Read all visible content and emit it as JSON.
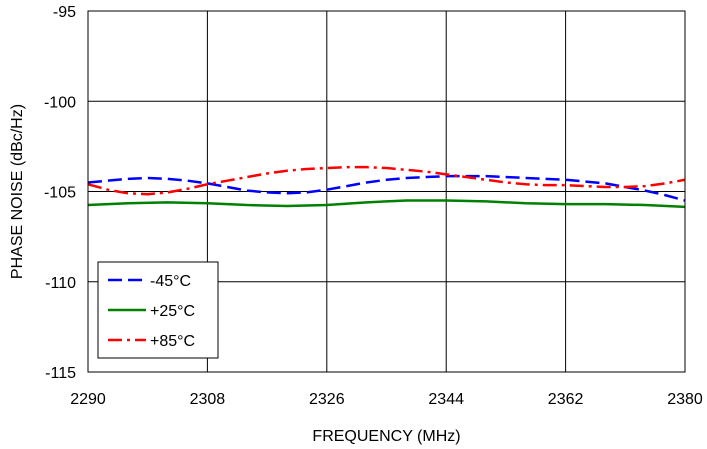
{
  "chart_data": {
    "type": "line",
    "title": "",
    "xlabel": "FREQUENCY (MHz)",
    "ylabel": "PHASE NOISE  (dBc/Hz)",
    "xlim": [
      2290,
      2380
    ],
    "ylim": [
      -115,
      -95
    ],
    "x_ticks": [
      2290,
      2308,
      2326,
      2344,
      2362,
      2380
    ],
    "y_ticks": [
      -95,
      -100,
      -105,
      -110,
      -115
    ],
    "x_tick_labels": [
      "2290",
      "2308",
      "2326",
      "2344",
      "2362",
      "2380"
    ],
    "y_tick_labels": [
      "-95",
      "-100",
      "-105",
      "-110",
      "-115"
    ],
    "grid": true,
    "legend_position": "bottom-left",
    "series": [
      {
        "name": "-45°C",
        "color": "#0000ff",
        "dash": "dash",
        "x": [
          2290,
          2293,
          2296,
          2299,
          2302,
          2305,
          2308,
          2311,
          2314,
          2317,
          2320,
          2323,
          2326,
          2329,
          2332,
          2335,
          2338,
          2341,
          2344,
          2347,
          2350,
          2353,
          2356,
          2359,
          2362,
          2365,
          2368,
          2371,
          2374,
          2377,
          2380
        ],
        "y": [
          -104.5,
          -104.4,
          -104.3,
          -104.25,
          -104.3,
          -104.4,
          -104.55,
          -104.75,
          -104.95,
          -105.05,
          -105.1,
          -105.05,
          -104.9,
          -104.7,
          -104.5,
          -104.35,
          -104.25,
          -104.2,
          -104.15,
          -104.15,
          -104.15,
          -104.2,
          -104.25,
          -104.3,
          -104.35,
          -104.45,
          -104.55,
          -104.75,
          -104.95,
          -105.2,
          -105.5
        ]
      },
      {
        "name": "+25°C",
        "color": "#008000",
        "dash": "solid",
        "x": [
          2290,
          2296,
          2302,
          2308,
          2314,
          2320,
          2326,
          2332,
          2338,
          2344,
          2350,
          2356,
          2362,
          2368,
          2374,
          2380
        ],
        "y": [
          -105.75,
          -105.65,
          -105.6,
          -105.65,
          -105.75,
          -105.8,
          -105.75,
          -105.6,
          -105.5,
          -105.5,
          -105.55,
          -105.65,
          -105.7,
          -105.7,
          -105.75,
          -105.85
        ]
      },
      {
        "name": "+85°C",
        "color": "#ff0000",
        "dash": "dashdot",
        "x": [
          2290,
          2293,
          2296,
          2299,
          2302,
          2305,
          2308,
          2311,
          2314,
          2317,
          2320,
          2323,
          2326,
          2329,
          2332,
          2335,
          2338,
          2341,
          2344,
          2347,
          2350,
          2353,
          2356,
          2359,
          2362,
          2365,
          2368,
          2371,
          2374,
          2377,
          2380
        ],
        "y": [
          -104.6,
          -104.9,
          -105.1,
          -105.15,
          -105.05,
          -104.85,
          -104.6,
          -104.4,
          -104.2,
          -104.0,
          -103.85,
          -103.75,
          -103.7,
          -103.65,
          -103.65,
          -103.7,
          -103.8,
          -103.9,
          -104.05,
          -104.2,
          -104.35,
          -104.5,
          -104.6,
          -104.65,
          -104.65,
          -104.7,
          -104.75,
          -104.75,
          -104.7,
          -104.55,
          -104.35
        ]
      }
    ]
  }
}
